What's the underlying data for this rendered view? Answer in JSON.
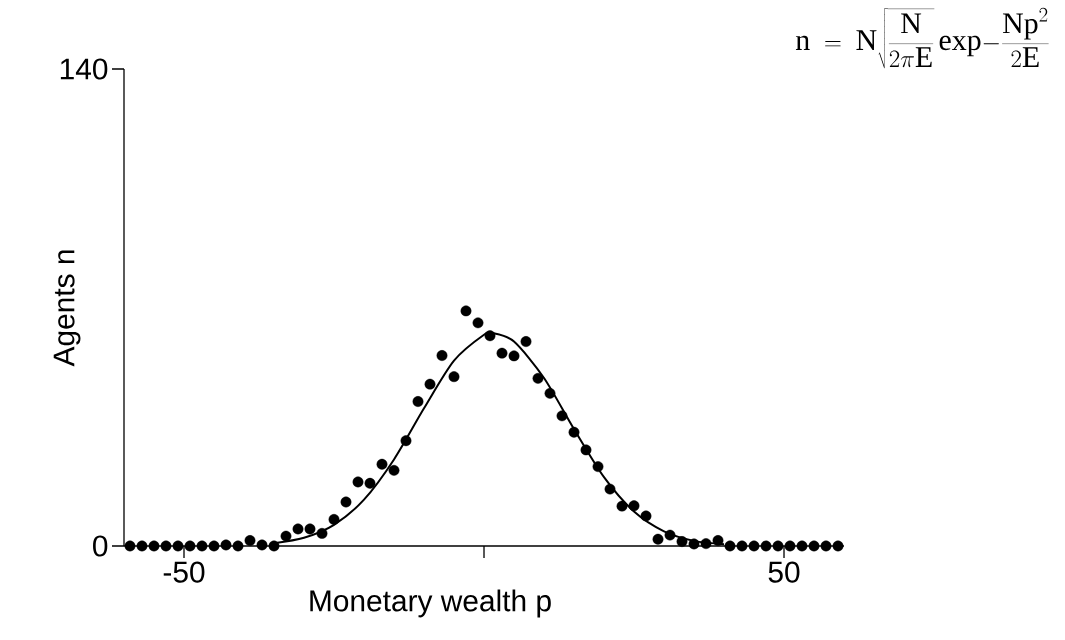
{
  "chart_data": {
    "type": "scatter",
    "xlabel": "Monetary wealth p",
    "ylabel": "Agents n",
    "annotations": [
      "\\displaystyle\\mathrm{n}\\;=\\;\\mathrm{N}\\sqrt{\\frac{\\mathrm{N}}{2\\pi\\mathrm{E}}}\\,\\mathrm{exp}{-}\\frac{\\mathrm{Np}^{2}}{2\\mathrm{E}}"
    ],
    "xlim": [
      -60,
      60
    ],
    "ylim": [
      0,
      140
    ],
    "xticks": [
      -50,
      {
        "value": 0,
        "label": null
      },
      50
    ],
    "yticks": [
      0,
      140
    ],
    "series": [
      {
        "type": "line",
        "marker": "none",
        "color": "#000000",
        "x": [
          -35,
          -30,
          -25,
          -20,
          -15,
          -10,
          -5,
          0,
          1.5,
          5,
          10,
          15,
          20,
          25,
          30,
          35,
          40
        ],
        "values": [
          0.8,
          2.4,
          6.2,
          13.6,
          25.4,
          40.4,
          54.4,
          62,
          62.5,
          60,
          49.3,
          34.3,
          20.2,
          10.1,
          4.3,
          1.5,
          0.5
        ]
      },
      {
        "marker": "circle",
        "color": "#000000",
        "x": [
          -59,
          -57,
          -55,
          -53,
          -51,
          -49,
          -47,
          -45,
          -43,
          -41,
          -39,
          -37,
          -35,
          -33,
          -31,
          -29,
          -27,
          -25,
          -23,
          -21,
          -19,
          -17,
          -15,
          -13,
          -11,
          -9,
          -7,
          -5,
          -3,
          -1,
          1,
          3,
          5,
          7,
          9,
          11,
          13,
          15,
          17,
          19,
          21,
          23,
          25,
          27,
          29,
          31,
          33,
          35,
          37,
          39,
          41,
          43,
          45,
          47,
          49,
          51,
          53,
          55,
          57,
          59
        ],
        "values": [
          0,
          0,
          0,
          0,
          0,
          0,
          0,
          0,
          0.3,
          0,
          1.6,
          0.3,
          0,
          2.9,
          5,
          5,
          3.7,
          7.8,
          12.9,
          18.8,
          18.4,
          24,
          22.2,
          30.9,
          42.4,
          47.5,
          55.9,
          49.7,
          69,
          65.5,
          61.7,
          56.6,
          55.8,
          60,
          49.2,
          44.8,
          38.2,
          33.4,
          28.2,
          23.3,
          16.7,
          11.7,
          11.8,
          8.8,
          2,
          3.2,
          1.3,
          0.6,
          0.7,
          1.6,
          0,
          0,
          0,
          0,
          0,
          0,
          0,
          0,
          0,
          0
        ]
      }
    ]
  }
}
